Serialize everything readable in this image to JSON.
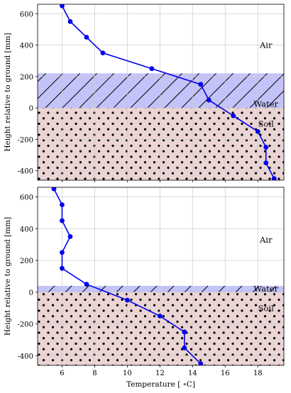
{
  "chart_data": [
    {
      "type": "line",
      "ylabel": "Height relative to ground [mm]",
      "xlabel": "",
      "xlim": [
        4.5,
        19.6
      ],
      "ylim": [
        -460,
        660
      ],
      "xticks": [
        6,
        8,
        10,
        12,
        14,
        16,
        18
      ],
      "yticks": [
        -400,
        -200,
        0,
        200,
        400,
        600
      ],
      "grid": true,
      "layers": [
        {
          "label": "Air",
          "label_y": 400,
          "label_x": 18.5
        },
        {
          "label": "Water",
          "from": 0,
          "to": 220,
          "color": "#b8b8f8",
          "hatch": "diagonal",
          "label_y": 25,
          "label_x": 18.5
        },
        {
          "label": "Soil",
          "from": -460,
          "to": 0,
          "color": "#e6cccc",
          "hatch": "dots",
          "label_y": -100,
          "label_x": 18.5
        }
      ],
      "series": [
        {
          "color": "#0000ee",
          "x": [
            6,
            6.5,
            7.5,
            8.5,
            11.5,
            14.5,
            15,
            16.5,
            18,
            18.5,
            18.5,
            19
          ],
          "y": [
            650,
            550,
            450,
            350,
            250,
            150,
            50,
            -50,
            -150,
            -250,
            -350,
            -450
          ]
        }
      ]
    },
    {
      "type": "line",
      "ylabel": "Height relative to ground [mm]",
      "xlabel": "Temperature [$^\\circ$C]",
      "xlim": [
        4.5,
        19.6
      ],
      "ylim": [
        -460,
        660
      ],
      "xticks": [
        6,
        8,
        10,
        12,
        14,
        16,
        18
      ],
      "yticks": [
        -400,
        -200,
        0,
        200,
        400,
        600
      ],
      "grid": true,
      "layers": [
        {
          "label": "Air",
          "label_y": 330,
          "label_x": 18.5
        },
        {
          "label": "Water",
          "from": 0,
          "to": 40,
          "color": "#b8b8f8",
          "hatch": "diagonal",
          "label_y": 22,
          "label_x": 18.5
        },
        {
          "label": "Soil",
          "from": -460,
          "to": 0,
          "color": "#e6cccc",
          "hatch": "dots",
          "label_y": -100,
          "label_x": 18.5
        }
      ],
      "series": [
        {
          "color": "#0000ee",
          "x": [
            5.5,
            6,
            6,
            6.5,
            6,
            6,
            7.5,
            10,
            12,
            13.5,
            13.5,
            14.5
          ],
          "y": [
            650,
            550,
            450,
            350,
            250,
            150,
            50,
            -50,
            -150,
            -250,
            -350,
            -450
          ]
        }
      ]
    }
  ]
}
